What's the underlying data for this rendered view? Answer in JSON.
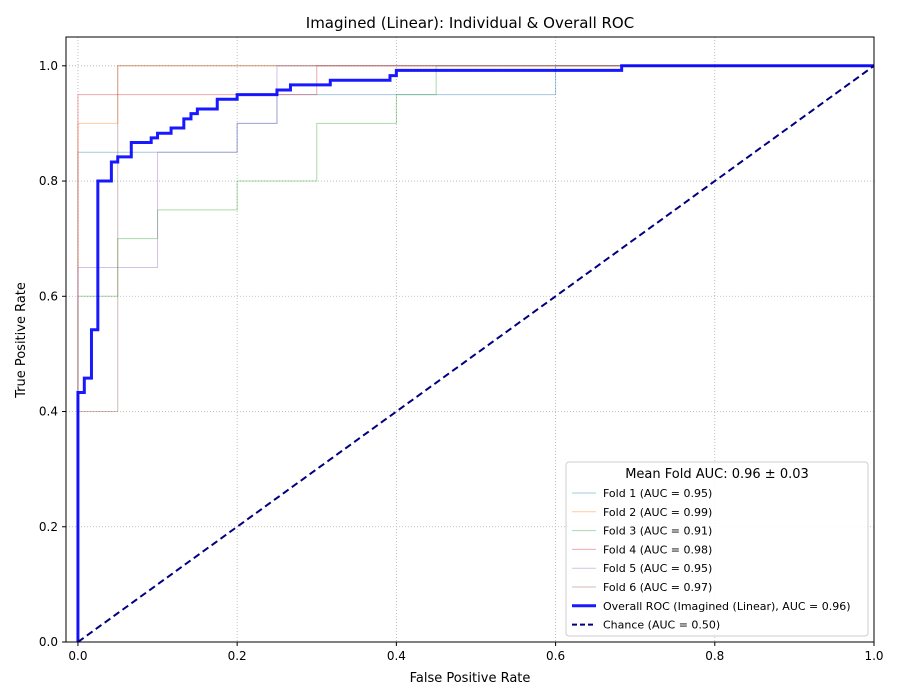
{
  "chart_data": {
    "type": "line",
    "title": "Imagined (Linear): Individual & Overall ROC",
    "xlabel": "False Positive Rate",
    "ylabel": "True Positive Rate",
    "xlim": [
      -0.015,
      1.0
    ],
    "ylim": [
      0.0,
      1.05
    ],
    "xticks": [
      "0.0",
      "0.2",
      "0.4",
      "0.6",
      "0.8",
      "1.0"
    ],
    "yticks": [
      "0.0",
      "0.2",
      "0.4",
      "0.6",
      "0.8",
      "1.0"
    ],
    "grid": true,
    "grid_style": "dotted",
    "legend": {
      "placement": "lower-right",
      "title": "Mean Fold AUC: 0.96 ± 0.03"
    },
    "series": [
      {
        "name": "Fold 1 (AUC = 0.95)",
        "color": "#1f77b4",
        "opacity": 0.4,
        "width": 1,
        "dash": "",
        "points": [
          [
            0,
            0
          ],
          [
            0,
            0.4
          ],
          [
            0,
            0.85
          ],
          [
            0.05,
            0.85
          ],
          [
            0.05,
            0.85
          ],
          [
            0.2,
            0.85
          ],
          [
            0.2,
            0.9
          ],
          [
            0.25,
            0.9
          ],
          [
            0.25,
            0.95
          ],
          [
            0.6,
            0.95
          ],
          [
            0.6,
            1.0
          ],
          [
            1.0,
            1.0
          ]
        ]
      },
      {
        "name": "Fold 2 (AUC = 0.99)",
        "color": "#ff7f0e",
        "opacity": 0.4,
        "width": 1,
        "dash": "",
        "points": [
          [
            0,
            0
          ],
          [
            0,
            0.9
          ],
          [
            0.05,
            0.9
          ],
          [
            0.05,
            1.0
          ],
          [
            1.0,
            1.0
          ]
        ]
      },
      {
        "name": "Fold 3 (AUC = 0.91)",
        "color": "#2ca02c",
        "opacity": 0.4,
        "width": 1,
        "dash": "",
        "points": [
          [
            0,
            0
          ],
          [
            0,
            0.6
          ],
          [
            0.05,
            0.6
          ],
          [
            0.05,
            0.7
          ],
          [
            0.1,
            0.7
          ],
          [
            0.1,
            0.75
          ],
          [
            0.2,
            0.75
          ],
          [
            0.2,
            0.8
          ],
          [
            0.3,
            0.8
          ],
          [
            0.3,
            0.9
          ],
          [
            0.4,
            0.9
          ],
          [
            0.4,
            0.95
          ],
          [
            0.45,
            0.95
          ],
          [
            0.45,
            1.0
          ],
          [
            1.0,
            1.0
          ]
        ]
      },
      {
        "name": "Fold 4 (AUC = 0.98)",
        "color": "#d62728",
        "opacity": 0.4,
        "width": 1,
        "dash": "",
        "points": [
          [
            0,
            0
          ],
          [
            0,
            0.95
          ],
          [
            0.3,
            0.95
          ],
          [
            0.3,
            1.0
          ],
          [
            1.0,
            1.0
          ]
        ]
      },
      {
        "name": "Fold 5 (AUC = 0.95)",
        "color": "#9467bd",
        "opacity": 0.4,
        "width": 1,
        "dash": "",
        "points": [
          [
            0,
            0
          ],
          [
            0,
            0.65
          ],
          [
            0.1,
            0.65
          ],
          [
            0.1,
            0.85
          ],
          [
            0.2,
            0.85
          ],
          [
            0.2,
            0.9
          ],
          [
            0.25,
            0.9
          ],
          [
            0.25,
            1.0
          ],
          [
            1.0,
            1.0
          ]
        ]
      },
      {
        "name": "Fold 6 (AUC = 0.97)",
        "color": "#8c564b",
        "opacity": 0.4,
        "width": 1,
        "dash": "",
        "points": [
          [
            0,
            0
          ],
          [
            0,
            0.4
          ],
          [
            0.05,
            0.4
          ],
          [
            0.05,
            1.0
          ],
          [
            1.0,
            1.0
          ]
        ]
      },
      {
        "name": "Overall ROC (Imagined (Linear), AUC = 0.96)",
        "color": "#0000ff",
        "opacity": 0.9,
        "width": 3,
        "dash": "",
        "points": [
          [
            0,
            0
          ],
          [
            0,
            0.433
          ],
          [
            0.008,
            0.433
          ],
          [
            0.008,
            0.458
          ],
          [
            0.017,
            0.458
          ],
          [
            0.017,
            0.542
          ],
          [
            0.025,
            0.542
          ],
          [
            0.025,
            0.8
          ],
          [
            0.042,
            0.8
          ],
          [
            0.042,
            0.833
          ],
          [
            0.05,
            0.833
          ],
          [
            0.05,
            0.842
          ],
          [
            0.067,
            0.842
          ],
          [
            0.067,
            0.867
          ],
          [
            0.092,
            0.867
          ],
          [
            0.092,
            0.875
          ],
          [
            0.1,
            0.875
          ],
          [
            0.1,
            0.883
          ],
          [
            0.117,
            0.883
          ],
          [
            0.117,
            0.892
          ],
          [
            0.133,
            0.892
          ],
          [
            0.133,
            0.908
          ],
          [
            0.142,
            0.908
          ],
          [
            0.142,
            0.917
          ],
          [
            0.15,
            0.917
          ],
          [
            0.15,
            0.925
          ],
          [
            0.175,
            0.925
          ],
          [
            0.175,
            0.942
          ],
          [
            0.2,
            0.942
          ],
          [
            0.2,
            0.95
          ],
          [
            0.25,
            0.95
          ],
          [
            0.25,
            0.958
          ],
          [
            0.267,
            0.958
          ],
          [
            0.267,
            0.967
          ],
          [
            0.317,
            0.967
          ],
          [
            0.317,
            0.975
          ],
          [
            0.392,
            0.975
          ],
          [
            0.392,
            0.983
          ],
          [
            0.4,
            0.983
          ],
          [
            0.4,
            0.992
          ],
          [
            0.683,
            0.992
          ],
          [
            0.683,
            1.0
          ],
          [
            1.0,
            1.0
          ]
        ]
      },
      {
        "name": "Chance (AUC = 0.50)",
        "color": "#000080",
        "opacity": 1,
        "width": 2,
        "dash": "7,4",
        "points": [
          [
            0,
            0
          ],
          [
            1,
            1
          ]
        ]
      }
    ]
  }
}
